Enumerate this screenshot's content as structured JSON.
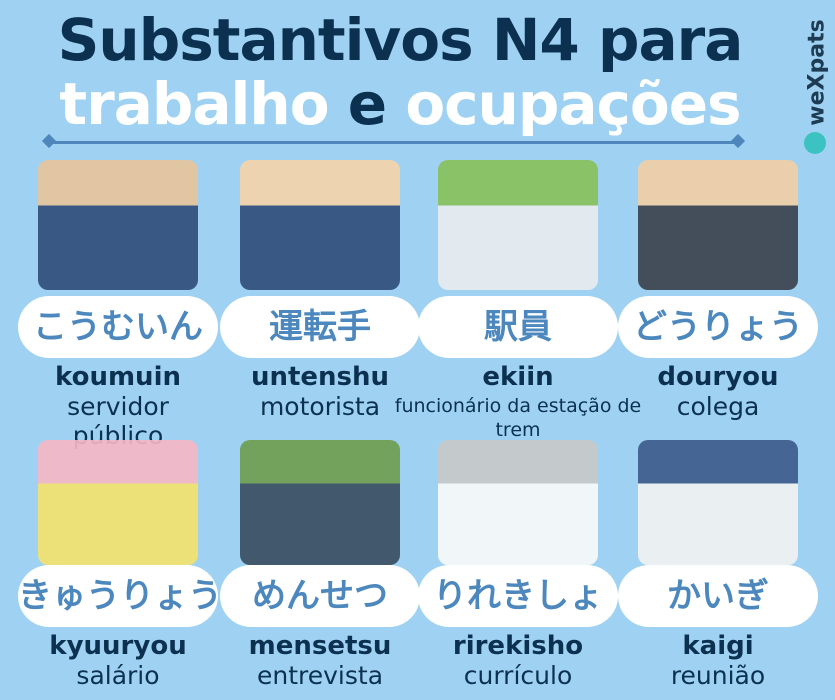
{
  "title": {
    "line1": "Substantivos N4 para",
    "line2_a": "trabalho",
    "line2_b": "e",
    "line2_c": "ocupações"
  },
  "logo": {
    "text": "weXpats"
  },
  "colors": {
    "background": "#9fd2f2",
    "title": "#0c3150",
    "pill_text": "#4c87bd",
    "accent": "#4f87bd"
  },
  "cards": [
    {
      "japanese": "こうむいん",
      "romaji": "koumuin",
      "translation": "servidor público",
      "illustration": "public-servants-illustration"
    },
    {
      "japanese": "運転手",
      "romaji": "untenshu",
      "translation": "motorista",
      "illustration": "driver-illustration"
    },
    {
      "japanese": "駅員",
      "romaji": "ekiin",
      "translation": "funcionário da estação de trem",
      "illustration": "station-staff-illustration"
    },
    {
      "japanese": "どうりょう",
      "romaji": "douryou",
      "translation": "colega",
      "illustration": "coworkers-illustration"
    },
    {
      "japanese": "きゅうりょう",
      "romaji": "kyuuryou",
      "translation": "salário",
      "illustration": "salary-illustration"
    },
    {
      "japanese": "めんせつ",
      "romaji": "mensetsu",
      "translation": "entrevista",
      "illustration": "interview-illustration"
    },
    {
      "japanese": "りれきしょ",
      "romaji": "rirekisho",
      "translation": "currículo",
      "illustration": "resume-illustration"
    },
    {
      "japanese": "かいぎ",
      "romaji": "kaigi",
      "translation": "reunião",
      "illustration": "meeting-illustration"
    }
  ]
}
